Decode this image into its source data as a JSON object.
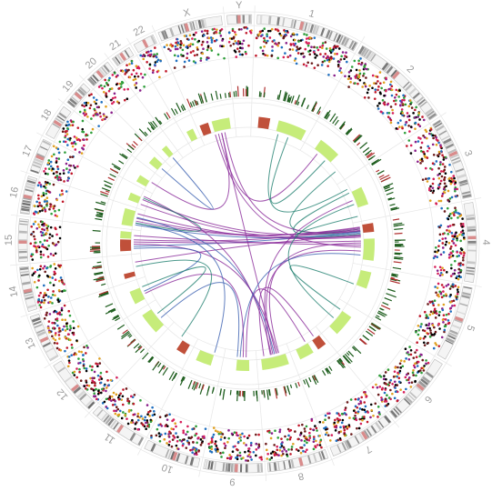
{
  "chromosomes": [
    {
      "label": "1",
      "size": 249
    },
    {
      "label": "2",
      "size": 243
    },
    {
      "label": "3",
      "size": 198
    },
    {
      "label": "4",
      "size": 191
    },
    {
      "label": "5",
      "size": 181
    },
    {
      "label": "6",
      "size": 171
    },
    {
      "label": "7",
      "size": 159
    },
    {
      "label": "8",
      "size": 146
    },
    {
      "label": "9",
      "size": 141
    },
    {
      "label": "10",
      "size": 135
    },
    {
      "label": "11",
      "size": 135
    },
    {
      "label": "12",
      "size": 133
    },
    {
      "label": "13",
      "size": 115
    },
    {
      "label": "14",
      "size": 107
    },
    {
      "label": "15",
      "size": 102
    },
    {
      "label": "16",
      "size": 90
    },
    {
      "label": "17",
      "size": 81
    },
    {
      "label": "18",
      "size": 78
    },
    {
      "label": "19",
      "size": 59
    },
    {
      "label": "20",
      "size": 63
    },
    {
      "label": "21",
      "size": 48
    },
    {
      "label": "22",
      "size": 51
    },
    {
      "label": "X",
      "size": 155
    },
    {
      "label": "Y",
      "size": 59
    }
  ],
  "colors": {
    "ideogram_band": "#8c8c8c",
    "centromere": "#d98c8c",
    "scatter": [
      "#000000",
      "#c0182a",
      "#2e9e3a",
      "#8a1f8a",
      "#d61f5a",
      "#1f6fbf",
      "#e0a020",
      "#6b1a1a"
    ],
    "tick_dark": "#1f5e1f",
    "tick_red": "#b03030",
    "cnv_gain": "#c6ec7a",
    "cnv_loss": "#c0503a",
    "link_purple": "#8a2b9a",
    "link_teal": "#1f7f6f",
    "link_blue": "#3a5fb0",
    "grid": "#e6e6e6"
  },
  "cnv_segments": [
    {
      "chr": "1",
      "start": 0.1,
      "end": 0.3,
      "state": "loss"
    },
    {
      "chr": "1",
      "start": 0.45,
      "end": 0.95,
      "state": "gain"
    },
    {
      "chr": "2",
      "start": 0.2,
      "end": 0.6,
      "state": "gain"
    },
    {
      "chr": "3",
      "start": 0.3,
      "end": 0.7,
      "state": "gain"
    },
    {
      "chr": "4",
      "start": 0.05,
      "end": 0.25,
      "state": "loss"
    },
    {
      "chr": "4",
      "start": 0.4,
      "end": 0.9,
      "state": "gain"
    },
    {
      "chr": "5",
      "start": 0.1,
      "end": 0.5,
      "state": "gain"
    },
    {
      "chr": "6",
      "start": 0.2,
      "end": 0.75,
      "state": "gain"
    },
    {
      "chr": "7",
      "start": 0.05,
      "end": 0.3,
      "state": "loss"
    },
    {
      "chr": "7",
      "start": 0.45,
      "end": 0.85,
      "state": "gain"
    },
    {
      "chr": "8",
      "start": 0.1,
      "end": 0.9,
      "state": "gain"
    },
    {
      "chr": "9",
      "start": 0.2,
      "end": 0.6,
      "state": "gain"
    },
    {
      "chr": "10",
      "start": 0.3,
      "end": 0.8,
      "state": "gain"
    },
    {
      "chr": "11",
      "start": 0.1,
      "end": 0.4,
      "state": "loss"
    },
    {
      "chr": "12",
      "start": 0.15,
      "end": 0.85,
      "state": "gain"
    },
    {
      "chr": "13",
      "start": 0.2,
      "end": 0.7,
      "state": "gain"
    },
    {
      "chr": "14",
      "start": 0.1,
      "end": 0.3,
      "state": "loss"
    },
    {
      "chr": "15",
      "start": 0.1,
      "end": 0.6,
      "state": "loss"
    },
    {
      "chr": "15",
      "start": 0.65,
      "end": 0.95,
      "state": "gain"
    },
    {
      "chr": "16",
      "start": 0.1,
      "end": 0.9,
      "state": "gain"
    },
    {
      "chr": "17",
      "start": 0.2,
      "end": 0.6,
      "state": "gain"
    },
    {
      "chr": "18",
      "start": 0.1,
      "end": 0.5,
      "state": "gain"
    },
    {
      "chr": "19",
      "start": 0.2,
      "end": 0.8,
      "state": "gain"
    },
    {
      "chr": "20",
      "start": 0.3,
      "end": 0.7,
      "state": "gain"
    },
    {
      "chr": "22",
      "start": 0.2,
      "end": 0.8,
      "state": "gain"
    },
    {
      "chr": "X",
      "start": 0.05,
      "end": 0.3,
      "state": "loss"
    },
    {
      "chr": "X",
      "start": 0.4,
      "end": 0.9,
      "state": "gain"
    }
  ],
  "links": [
    {
      "from": "2",
      "fromPos": 0.8,
      "to": "4",
      "toPos": 0.15,
      "color": "teal"
    },
    {
      "from": "3",
      "fromPos": 0.3,
      "to": "4",
      "toPos": 0.2,
      "color": "teal"
    },
    {
      "from": "4",
      "fromPos": 0.1,
      "to": "16",
      "toPos": 0.4,
      "color": "purple"
    },
    {
      "from": "4",
      "fromPos": 0.12,
      "to": "16",
      "toPos": 0.55,
      "color": "purple"
    },
    {
      "from": "4",
      "fromPos": 0.15,
      "to": "15",
      "toPos": 0.6,
      "color": "purple"
    },
    {
      "from": "4",
      "fromPos": 0.18,
      "to": "17",
      "toPos": 0.5,
      "color": "purple"
    },
    {
      "from": "4",
      "fromPos": 0.2,
      "to": "X",
      "toPos": 0.7,
      "color": "purple"
    },
    {
      "from": "4",
      "fromPos": 0.22,
      "to": "15",
      "toPos": 0.3,
      "color": "blue"
    },
    {
      "from": "4",
      "fromPos": 0.25,
      "to": "16",
      "toPos": 0.2,
      "color": "blue"
    },
    {
      "from": "4",
      "fromPos": 0.28,
      "to": "3",
      "toPos": 0.9,
      "color": "teal"
    },
    {
      "from": "4",
      "fromPos": 0.3,
      "to": "14",
      "toPos": 0.7,
      "color": "purple"
    },
    {
      "from": "4",
      "fromPos": 0.32,
      "to": "17",
      "toPos": 0.2,
      "color": "purple"
    },
    {
      "from": "4",
      "fromPos": 0.35,
      "to": "16",
      "toPos": 0.8,
      "color": "purple"
    },
    {
      "from": "4",
      "fromPos": 0.45,
      "to": "15",
      "toPos": 0.5,
      "color": "purple"
    },
    {
      "from": "4",
      "fromPos": 0.55,
      "to": "15",
      "toPos": 0.8,
      "color": "purple"
    },
    {
      "from": "4",
      "fromPos": 0.6,
      "to": "X",
      "toPos": 0.4,
      "color": "purple"
    },
    {
      "from": "7",
      "fromPos": 0.5,
      "to": "9",
      "toPos": 0.3,
      "color": "purple"
    },
    {
      "from": "8",
      "fromPos": 0.3,
      "to": "4",
      "toPos": 0.5,
      "color": "purple"
    },
    {
      "from": "8",
      "fromPos": 0.35,
      "to": "15",
      "toPos": 0.4,
      "color": "purple"
    },
    {
      "from": "8",
      "fromPos": 0.4,
      "to": "X",
      "toPos": 0.6,
      "color": "purple"
    },
    {
      "from": "8",
      "fromPos": 0.45,
      "to": "16",
      "toPos": 0.6,
      "color": "blue"
    },
    {
      "from": "8",
      "fromPos": 0.5,
      "to": "4",
      "toPos": 0.7,
      "color": "purple"
    },
    {
      "from": "8",
      "fromPos": 0.55,
      "to": "17",
      "toPos": 0.7,
      "color": "purple"
    },
    {
      "from": "8",
      "fromPos": 0.58,
      "to": "3",
      "toPos": 0.5,
      "color": "purple"
    },
    {
      "from": "9",
      "fromPos": 0.5,
      "to": "4",
      "toPos": 0.8,
      "color": "blue"
    },
    {
      "from": "9",
      "fromPos": 0.6,
      "to": "12",
      "toPos": 0.4,
      "color": "blue"
    },
    {
      "from": "9",
      "fromPos": 0.4,
      "to": "13",
      "toPos": 0.4,
      "color": "purple"
    },
    {
      "from": "10",
      "fromPos": 0.3,
      "to": "16",
      "toPos": 0.3,
      "color": "blue"
    },
    {
      "from": "11",
      "fromPos": 0.5,
      "to": "14",
      "toPos": 0.5,
      "color": "teal"
    },
    {
      "from": "13",
      "fromPos": 0.5,
      "to": "15",
      "toPos": 0.2,
      "color": "blue"
    },
    {
      "from": "X",
      "fromPos": 0.5,
      "to": "2",
      "toPos": 0.3,
      "color": "purple"
    },
    {
      "from": "X",
      "fromPos": 0.6,
      "to": "18",
      "toPos": 0.5,
      "color": "purple"
    },
    {
      "from": "19",
      "fromPos": 0.5,
      "to": "20",
      "toPos": 0.5,
      "color": "blue"
    },
    {
      "from": "1",
      "fromPos": 0.5,
      "to": "3",
      "toPos": 0.2,
      "color": "teal"
    },
    {
      "from": "1",
      "fromPos": 0.7,
      "to": "2",
      "toPos": 0.5,
      "color": "teal"
    },
    {
      "from": "3",
      "fromPos": 0.6,
      "to": "6",
      "toPos": 0.5,
      "color": "teal"
    },
    {
      "from": "5",
      "fromPos": 0.5,
      "to": "6",
      "toPos": 0.2,
      "color": "teal"
    },
    {
      "from": "12",
      "fromPos": 0.6,
      "to": "13",
      "toPos": 0.7,
      "color": "teal"
    },
    {
      "from": "16",
      "fromPos": 0.3,
      "to": "17",
      "toPos": 0.6,
      "color": "teal"
    },
    {
      "from": "7",
      "fromPos": 0.2,
      "to": "8",
      "toPos": 0.8,
      "color": "purple"
    }
  ]
}
